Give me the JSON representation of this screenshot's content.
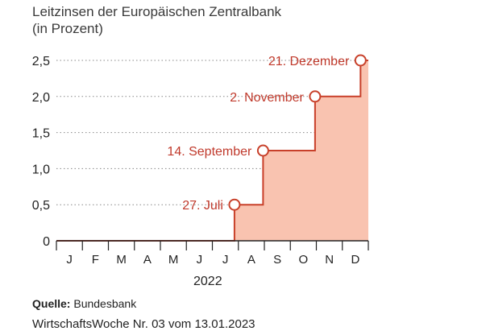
{
  "header": {
    "title_line1": "Leitzinsen der Europäischen Zentralbank",
    "title_line2": "(in Prozent)"
  },
  "chart_data": {
    "type": "area",
    "title": "Leitzinsen der Europäischen Zentralbank (in Prozent)",
    "xlabel": "2022",
    "ylabel": "",
    "categories": [
      "J",
      "F",
      "M",
      "A",
      "M",
      "J",
      "J",
      "A",
      "S",
      "O",
      "N",
      "D"
    ],
    "yticks": [
      "0",
      "0,5",
      "1,0",
      "1,5",
      "2,0",
      "2,5"
    ],
    "ylim": [
      0,
      2.5
    ],
    "series": [
      {
        "points": [
          {
            "month": 1.0,
            "value": 0
          },
          {
            "month": 7.85,
            "value": 0
          },
          {
            "month": 7.85,
            "value": 0.5
          },
          {
            "month": 8.95,
            "value": 0.5
          },
          {
            "month": 8.95,
            "value": 1.25
          },
          {
            "month": 10.95,
            "value": 1.25
          },
          {
            "month": 10.95,
            "value": 2.0
          },
          {
            "month": 12.7,
            "value": 2.0
          },
          {
            "month": 12.7,
            "value": 2.5
          },
          {
            "month": 13.0,
            "value": 2.5
          }
        ]
      }
    ],
    "annotations": [
      {
        "label": "27. Juli",
        "month": 7.85,
        "value": 0.5
      },
      {
        "label": "14. September",
        "month": 8.95,
        "value": 1.25
      },
      {
        "label": "2. November",
        "month": 10.95,
        "value": 2.0
      },
      {
        "label": "21. Dezember",
        "month": 12.7,
        "value": 2.5
      }
    ],
    "grid": "dotted horizontal",
    "colors": {
      "fill": "#f9c3b0",
      "line": "#c8402a",
      "label": "#c0392b",
      "axis": "#222222",
      "grid": "#888888"
    }
  },
  "footer": {
    "source_label": "Quelle:",
    "source_value": " Bundesbank",
    "publication": "WirtschaftsWoche Nr. 03 vom 13.01.2023"
  }
}
